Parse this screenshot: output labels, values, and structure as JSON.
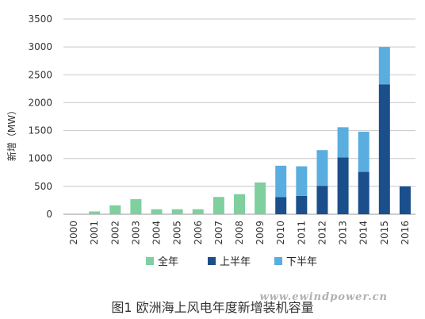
{
  "chart_data": {
    "type": "bar",
    "stacked": true,
    "categories": [
      "2000",
      "2001",
      "2002",
      "2003",
      "2004",
      "2005",
      "2006",
      "2007",
      "2008",
      "2009",
      "2010",
      "2011",
      "2012",
      "2013",
      "2014",
      "2015",
      "2016"
    ],
    "series": [
      {
        "name": "全年",
        "color": "#7fcf9f",
        "values": [
          0,
          50,
          160,
          270,
          90,
          90,
          90,
          310,
          360,
          570,
          0,
          0,
          0,
          0,
          0,
          0,
          0
        ]
      },
      {
        "name": "上半年",
        "color": "#1a4f8b",
        "values": [
          0,
          0,
          0,
          0,
          0,
          0,
          0,
          0,
          0,
          0,
          310,
          330,
          510,
          1020,
          760,
          2330,
          500
        ]
      },
      {
        "name": "下半年",
        "color": "#5aaedf",
        "values": [
          0,
          0,
          0,
          0,
          0,
          0,
          0,
          0,
          0,
          0,
          560,
          530,
          640,
          540,
          720,
          670,
          0
        ]
      }
    ],
    "ylabel": "新增（MW）",
    "xlabel": "",
    "ylim": [
      0,
      3500
    ],
    "yticks": [
      0,
      500,
      1000,
      1500,
      2000,
      2500,
      3000,
      3500
    ],
    "grid": true,
    "legend_position": "bottom"
  },
  "watermark": "www.ewindpower.cn",
  "caption": "图1  欧洲海上风电年度新增装机容量"
}
